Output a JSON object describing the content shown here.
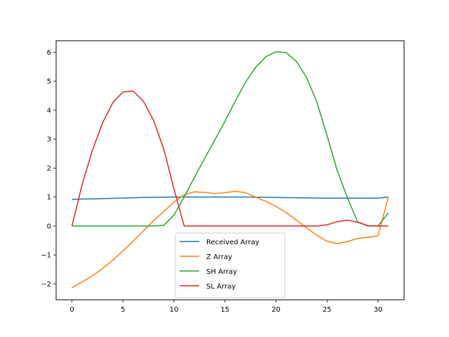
{
  "chart_data": {
    "type": "line",
    "title": "",
    "xlabel": "",
    "ylabel": "",
    "xlim": [
      -1.55,
      32.55
    ],
    "ylim": [
      -2.55,
      6.4
    ],
    "xticks": [
      0,
      5,
      10,
      15,
      20,
      25,
      30
    ],
    "yticks": [
      -2,
      -1,
      0,
      1,
      2,
      3,
      4,
      5,
      6
    ],
    "grid": false,
    "legend_position": "lower-center",
    "x": [
      0,
      1,
      2,
      3,
      4,
      5,
      6,
      7,
      8,
      9,
      10,
      11,
      12,
      13,
      14,
      15,
      16,
      17,
      18,
      19,
      20,
      21,
      22,
      23,
      24,
      25,
      26,
      27,
      28,
      29,
      30,
      31
    ],
    "series": [
      {
        "name": "Received Array",
        "color": "#1f77b4",
        "values": [
          0.92,
          0.93,
          0.935,
          0.945,
          0.955,
          0.965,
          0.975,
          0.985,
          0.99,
          0.995,
          1.0,
          1.0,
          1.0,
          1.0,
          1.0,
          1.0,
          1.0,
          1.0,
          0.995,
          0.99,
          0.985,
          0.98,
          0.975,
          0.97,
          0.965,
          0.96,
          0.96,
          0.96,
          0.96,
          0.96,
          0.96,
          1.0
        ]
      },
      {
        "name": "Z Array",
        "color": "#ff7f0e",
        "values": [
          -2.13,
          -1.93,
          -1.72,
          -1.47,
          -1.18,
          -0.86,
          -0.52,
          -0.17,
          0.18,
          0.5,
          0.83,
          1.08,
          1.18,
          1.16,
          1.12,
          1.15,
          1.2,
          1.15,
          1.0,
          0.85,
          0.68,
          0.46,
          0.2,
          -0.07,
          -0.32,
          -0.53,
          -0.61,
          -0.54,
          -0.43,
          -0.39,
          -0.34,
          1.0
        ]
      },
      {
        "name": "SH Array",
        "color": "#2ca02c",
        "values": [
          0,
          0,
          0,
          0,
          0,
          0,
          0,
          0,
          0,
          0.02,
          0.38,
          1.0,
          1.68,
          2.33,
          2.97,
          3.62,
          4.31,
          4.96,
          5.48,
          5.85,
          6.02,
          5.99,
          5.68,
          5.13,
          4.28,
          3.12,
          1.91,
          0.97,
          0.14,
          0,
          0,
          0.45
        ]
      },
      {
        "name": "SL Array",
        "color": "#d62728",
        "values": [
          0,
          1.43,
          2.61,
          3.56,
          4.26,
          4.63,
          4.66,
          4.31,
          3.65,
          2.65,
          1.28,
          0,
          0,
          0,
          0,
          0,
          0,
          0,
          0,
          0,
          0,
          0,
          0,
          0,
          0,
          0.04,
          0.15,
          0.2,
          0.13,
          0.01,
          0,
          0
        ]
      }
    ]
  }
}
